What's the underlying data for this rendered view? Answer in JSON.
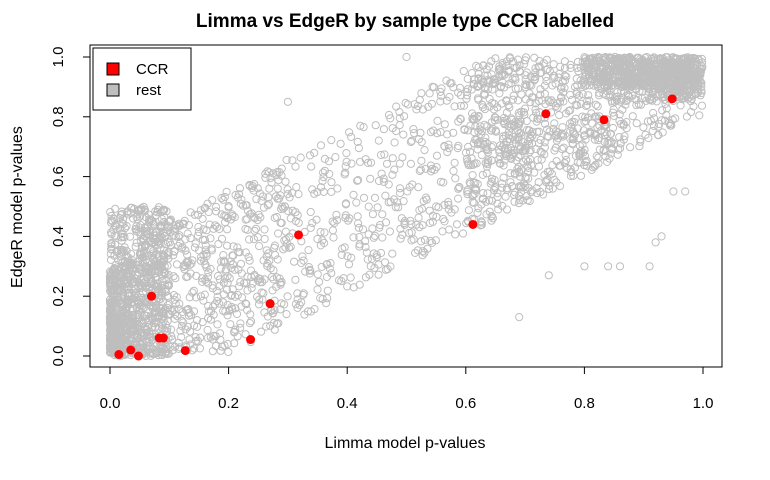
{
  "chart_data": {
    "type": "scatter",
    "title": "Limma vs EdgeR by sample type CCR labelled",
    "xlabel": "Limma model p-values",
    "ylabel": "EdgeR model p-values",
    "xlim": [
      0,
      1
    ],
    "ylim": [
      0,
      1
    ],
    "x_ticks": [
      "0.0",
      "0.2",
      "0.4",
      "0.6",
      "0.8",
      "1.0"
    ],
    "y_ticks": [
      "0.0",
      "0.2",
      "0.4",
      "0.6",
      "0.8",
      "1.0"
    ],
    "grid": false,
    "legend": {
      "position": "top-left",
      "entries": [
        {
          "label": "CCR",
          "color": "#ff0000"
        },
        {
          "label": "rest",
          "color": "#bebebe"
        }
      ]
    },
    "series": [
      {
        "name": "rest",
        "marker": "open-circle",
        "color": "#bebebe",
        "note_points": "thousands of points densely filling the band between y≈x-0.45 and y≈x+0.55, concentrated near the origin and the top-right",
        "points": [
          [
            0.5,
            1.0
          ],
          [
            0.91,
            0.3
          ],
          [
            0.95,
            0.55
          ],
          [
            0.97,
            0.55
          ],
          [
            0.69,
            0.13
          ],
          [
            0.55,
            0.5
          ],
          [
            0.74,
            0.27
          ],
          [
            0.8,
            0.3
          ],
          [
            0.84,
            0.3
          ],
          [
            0.86,
            0.3
          ],
          [
            0.92,
            0.38
          ],
          [
            0.93,
            0.4
          ],
          [
            0.62,
            0.9
          ],
          [
            0.3,
            0.85
          ],
          [
            0.1,
            0.45
          ]
        ]
      },
      {
        "name": "CCR",
        "marker": "filled-circle",
        "color": "#ff0000",
        "points": [
          [
            0.015,
            0.005
          ],
          [
            0.035,
            0.02
          ],
          [
            0.048,
            0.0
          ],
          [
            0.07,
            0.2
          ],
          [
            0.083,
            0.06
          ],
          [
            0.09,
            0.06
          ],
          [
            0.127,
            0.018
          ],
          [
            0.237,
            0.055
          ],
          [
            0.27,
            0.175
          ],
          [
            0.318,
            0.405
          ],
          [
            0.612,
            0.44
          ],
          [
            0.735,
            0.81
          ],
          [
            0.833,
            0.79
          ],
          [
            0.948,
            0.86
          ]
        ]
      }
    ]
  }
}
